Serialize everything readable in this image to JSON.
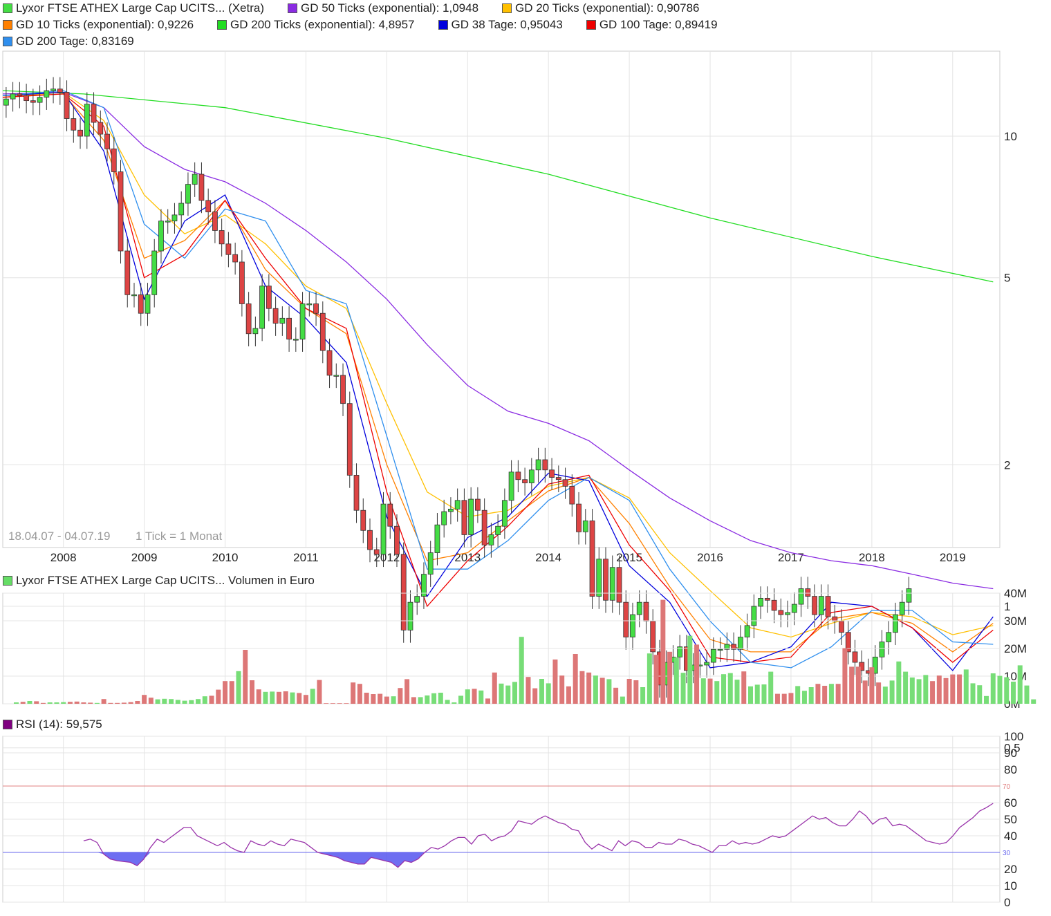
{
  "price_panel": {
    "legend": [
      {
        "label": "Lyxor FTSE ATHEX Large Cap UCITS... (Xetra)",
        "color": "#44dd44"
      },
      {
        "label": "GD 50 Ticks (exponential): 1,0948",
        "color": "#8a2be2"
      },
      {
        "label": "GD 20 Ticks (exponential): 0,90786",
        "color": "#ffc000"
      },
      {
        "label": "GD 10 Ticks (exponential): 0,9226",
        "color": "#ff8000"
      },
      {
        "label": "GD 200 Ticks (exponential): 4,8957",
        "color": "#22dd22"
      },
      {
        "label": "GD 38 Tage: 0,95043",
        "color": "#0000dd"
      },
      {
        "label": "GD 100 Tage: 0,89419",
        "color": "#ee0000"
      },
      {
        "label": "GD 200 Tage: 0,83169",
        "color": "#2f8fee"
      }
    ],
    "date_range": "18.04.07 - 04.07.19",
    "tick_info": "1 Tick = 1 Monat",
    "y_ticks": [
      "10",
      "5",
      "2",
      "1",
      "0,5"
    ],
    "x_ticks": [
      "2008",
      "2009",
      "2010",
      "2011",
      "2012",
      "2013",
      "2014",
      "2015",
      "2016",
      "2017",
      "2018",
      "2019"
    ]
  },
  "volume_panel": {
    "legend": {
      "label": "Lyxor FTSE ATHEX Large Cap UCITS... Volumen in Euro",
      "color": "#66dd66"
    },
    "y_ticks": [
      "40M",
      "30M",
      "20M",
      "10M",
      "0M"
    ]
  },
  "rsi_panel": {
    "legend": {
      "label": "RSI (14): 59,575",
      "color": "#800080"
    },
    "y_ticks": [
      "100",
      "90",
      "80",
      "60",
      "50",
      "40",
      "20",
      "10",
      "0"
    ],
    "upper_line_label": "70",
    "lower_line_label": "30"
  },
  "colors": {
    "up_candle": "#44dd44",
    "down_candle": "#dd4444",
    "vol_up": "#77dd77",
    "vol_down": "#dd7777",
    "rsi_line": "#9933aa",
    "rsi_fill": "#5555ee",
    "line_70": "#e08080",
    "line_30": "#6666ee",
    "grid": "#e4e4e4"
  },
  "chart_data": [
    {
      "type": "candlestick",
      "title": "Lyxor FTSE ATHEX Large Cap UCITS... (Xetra)",
      "yscale": "log",
      "ylim": [
        0.36,
        20
      ],
      "x_start": "2007-04",
      "x_end": "2019-07",
      "close": [
        12.0,
        12.3,
        12.2,
        11.9,
        11.8,
        12.1,
        12.5,
        12.6,
        12.4,
        10.9,
        10.3,
        10.0,
        11.7,
        10.7,
        10.1,
        9.4,
        8.4,
        5.7,
        4.6,
        4.6,
        4.2,
        4.6,
        5.7,
        6.6,
        6.6,
        6.8,
        7.2,
        7.9,
        8.3,
        7.3,
        6.9,
        6.3,
        5.9,
        5.6,
        5.4,
        4.4,
        3.8,
        3.9,
        4.8,
        4.3,
        4.0,
        4.1,
        3.7,
        3.7,
        4.4,
        4.4,
        4.2,
        3.5,
        3.1,
        3.1,
        2.7,
        1.9,
        1.6,
        1.45,
        1.32,
        1.29,
        1.65,
        1.48,
        1.29,
        0.89,
        1.02,
        1.05,
        1.17,
        1.3,
        1.49,
        1.59,
        1.61,
        1.68,
        1.42,
        1.69,
        1.6,
        1.35,
        1.42,
        1.48,
        1.68,
        1.93,
        1.86,
        1.83,
        1.95,
        2.05,
        1.95,
        1.88,
        1.86,
        1.8,
        1.65,
        1.44,
        1.52,
        1.05,
        1.26,
        1.03,
        1.21,
        1.02,
        0.86,
        0.96,
        1.02,
        0.93,
        0.8,
        0.68,
        0.76,
        0.78,
        0.82,
        0.73,
        0.75,
        0.75,
        0.76,
        0.81,
        0.81,
        0.83,
        0.81,
        0.86,
        0.91,
        1.0,
        1.04,
        1.03,
        0.98,
        0.96,
        0.97,
        1.01,
        1.09,
        1.05,
        0.96,
        1.05,
        0.95,
        0.93,
        0.88,
        0.8,
        0.76,
        0.73,
        0.72,
        0.78,
        0.84,
        0.88,
        0.96,
        1.02,
        1.09
      ]
    },
    {
      "type": "line",
      "series": [
        {
          "name": "GD 200 Ticks (exponential): 4,8957",
          "x": [
            "2007-04",
            "2008-04",
            "2010-01",
            "2012-01",
            "2014-01",
            "2016-01",
            "2018-01",
            "2019-07"
          ],
          "values": [
            12.5,
            12.3,
            11.5,
            9.9,
            8.3,
            6.7,
            5.55,
            4.9
          ]
        },
        {
          "name": "GD 50 Ticks (exponential): 1,0948",
          "x": [
            "2007-04",
            "2008-01",
            "2008-07",
            "2009-01",
            "2009-07",
            "2010-01",
            "2010-07",
            "2011-01",
            "2011-07",
            "2012-01",
            "2012-07",
            "2013-01",
            "2013-07",
            "2014-01",
            "2014-07",
            "2015-01",
            "2015-07",
            "2016-01",
            "2016-07",
            "2017-01",
            "2017-07",
            "2018-01",
            "2018-07",
            "2019-01",
            "2019-07"
          ],
          "values": [
            12.3,
            12.4,
            11.5,
            9.5,
            8.5,
            8.0,
            7.2,
            6.3,
            5.4,
            4.5,
            3.6,
            2.95,
            2.6,
            2.45,
            2.25,
            1.95,
            1.7,
            1.52,
            1.38,
            1.3,
            1.25,
            1.22,
            1.17,
            1.12,
            1.09
          ]
        },
        {
          "name": "GD 20 Ticks (exponential): 0,90786",
          "x": [
            "2007-04",
            "2008-01",
            "2008-07",
            "2009-01",
            "2009-07",
            "2010-01",
            "2010-07",
            "2011-01",
            "2011-07",
            "2012-01",
            "2012-07",
            "2013-01",
            "2013-07",
            "2014-01",
            "2014-07",
            "2015-01",
            "2015-07",
            "2016-01",
            "2016-07",
            "2017-01",
            "2017-07",
            "2018-01",
            "2018-07",
            "2019-01",
            "2019-07"
          ],
          "values": [
            12.1,
            12.4,
            10.8,
            7.5,
            6.2,
            6.8,
            5.9,
            4.8,
            4.3,
            2.7,
            1.75,
            1.55,
            1.6,
            1.8,
            1.88,
            1.7,
            1.3,
            1.08,
            0.9,
            0.86,
            0.92,
            0.97,
            0.95,
            0.87,
            0.91
          ]
        },
        {
          "name": "GD 10 Ticks (exponential): 0,9226",
          "x": [
            "2007-04",
            "2008-01",
            "2008-07",
            "2009-01",
            "2009-07",
            "2010-01",
            "2010-07",
            "2011-01",
            "2011-07",
            "2012-01",
            "2012-07",
            "2013-01",
            "2013-07",
            "2014-01",
            "2014-07",
            "2015-01",
            "2015-07",
            "2016-01",
            "2016-07",
            "2017-01",
            "2017-07",
            "2018-01",
            "2018-07",
            "2019-01",
            "2019-07"
          ],
          "values": [
            12.1,
            12.3,
            9.8,
            5.5,
            6.0,
            7.3,
            5.2,
            4.3,
            3.8,
            2.0,
            1.25,
            1.3,
            1.52,
            1.76,
            1.88,
            1.5,
            1.1,
            0.85,
            0.8,
            0.8,
            0.94,
            0.97,
            0.92,
            0.8,
            0.92
          ]
        },
        {
          "name": "GD 38 Tage: 0,95043",
          "x": [
            "2007-04",
            "2008-01",
            "2008-07",
            "2009-01",
            "2009-07",
            "2010-01",
            "2010-07",
            "2011-01",
            "2011-07",
            "2012-01",
            "2012-07",
            "2013-01",
            "2013-07",
            "2014-01",
            "2014-07",
            "2015-01",
            "2015-07",
            "2016-01",
            "2016-07",
            "2017-01",
            "2017-07",
            "2018-01",
            "2018-07",
            "2019-01",
            "2019-07"
          ],
          "values": [
            12.2,
            12.4,
            9.3,
            4.5,
            6.6,
            7.5,
            4.8,
            4.1,
            3.3,
            1.55,
            1.05,
            1.4,
            1.55,
            1.92,
            1.85,
            1.22,
            1.02,
            0.74,
            0.76,
            0.82,
            1.02,
            1.0,
            0.9,
            0.73,
            0.95
          ]
        },
        {
          "name": "GD 100 Tage: 0,89419",
          "x": [
            "2007-04",
            "2008-01",
            "2008-07",
            "2009-01",
            "2009-07",
            "2010-01",
            "2010-07",
            "2011-01",
            "2011-07",
            "2012-01",
            "2012-07",
            "2013-01",
            "2013-07",
            "2014-01",
            "2014-07",
            "2015-01",
            "2015-07",
            "2016-01",
            "2016-07",
            "2017-01",
            "2017-07",
            "2018-01",
            "2018-07",
            "2019-01",
            "2019-07"
          ],
          "values": [
            12.1,
            12.3,
            10.5,
            5.0,
            5.6,
            7.3,
            5.5,
            4.3,
            3.9,
            1.75,
            1.0,
            1.25,
            1.48,
            1.82,
            1.9,
            1.35,
            1.08,
            0.78,
            0.76,
            0.78,
            0.97,
            1.0,
            0.9,
            0.76,
            0.89
          ]
        },
        {
          "name": "GD 200 Tage: 0,83169",
          "x": [
            "2007-04",
            "2008-01",
            "2008-07",
            "2009-01",
            "2009-07",
            "2010-01",
            "2010-07",
            "2011-01",
            "2011-07",
            "2012-01",
            "2012-07",
            "2013-01",
            "2013-07",
            "2014-01",
            "2014-07",
            "2015-01",
            "2015-07",
            "2016-01",
            "2016-07",
            "2017-01",
            "2017-07",
            "2018-01",
            "2018-07",
            "2019-01",
            "2019-07"
          ],
          "values": [
            12.2,
            12.5,
            11.5,
            6.5,
            5.5,
            7.0,
            6.6,
            4.7,
            4.4,
            2.3,
            1.2,
            1.2,
            1.38,
            1.68,
            1.88,
            1.68,
            1.2,
            0.93,
            0.76,
            0.74,
            0.82,
            0.98,
            0.98,
            0.84,
            0.83
          ]
        }
      ]
    },
    {
      "type": "bar",
      "title": "Lyxor FTSE ATHEX Large Cap UCITS... Volumen in Euro",
      "ylim": [
        0,
        40
      ],
      "unit": "M",
      "values": [
        0.5,
        0.7,
        1.0,
        0.9,
        0.3,
        0.5,
        0.5,
        0.6,
        0.7,
        0.8,
        0.5,
        0.4,
        0.3,
        1.7,
        0.3,
        0.3,
        0.4,
        0.6,
        1.0,
        3.2,
        2.2,
        1.6,
        1.8,
        1.7,
        1.4,
        1.1,
        1.3,
        1.7,
        2.7,
        2.9,
        5.1,
        8.2,
        8.2,
        11.8,
        19.5,
        8.5,
        5.2,
        4.3,
        4.4,
        4.3,
        4.5,
        4.1,
        3.9,
        3.2,
        5.4,
        8.6,
        0.2,
        0.2,
        0.2,
        0.2,
        7.7,
        7.2,
        4.0,
        3.5,
        3.6,
        2.6,
        2.7,
        5.7,
        8.9,
        2.4,
        2.4,
        3.0,
        3.8,
        4.0,
        1.4,
        0.5,
        2.9,
        5.2,
        5.4,
        4.8,
        1.9,
        11.3,
        7.3,
        6.6,
        7.9,
        24.2,
        9.7,
        5.6,
        9.0,
        7.4,
        16.0,
        10.2,
        6.3,
        18.0,
        11.8,
        11.3,
        10.2,
        9.4,
        8.9,
        5.8,
        2.6,
        9.0,
        8.5,
        6.0,
        18.2,
        17.7,
        37.6,
        18.8,
        16.8,
        11.2,
        24.6,
        21.4,
        9.2,
        9.1,
        8.2,
        10.7,
        11.1,
        8.7,
        11.7,
        6.3,
        6.9,
        7.0,
        11.6,
        3.6,
        3.6,
        3.9,
        6.4,
        4.7,
        6.0,
        7.2,
        6.5,
        7.2,
        7.2,
        20.1,
        13.4,
        13.4,
        8.4,
        13.2,
        7.7,
        6.2,
        8.4,
        15.3,
        11.6,
        9.5,
        8.9,
        10.4,
        8.2,
        10.2,
        9.3,
        10.6,
        10.6,
        12.4,
        7.4,
        6.7,
        2.8,
        11.0,
        10.1,
        9.6,
        8.0,
        13.9,
        6.6,
        1.6
      ],
      "up": [
        1,
        0,
        1,
        0,
        0,
        1,
        1,
        1,
        0,
        0,
        0,
        0,
        1,
        0,
        0,
        0,
        0,
        0,
        0,
        0,
        0,
        1,
        1,
        1,
        1,
        1,
        1,
        1,
        1,
        0,
        0,
        0,
        0,
        1,
        0,
        0,
        0,
        1,
        1,
        0,
        0,
        1,
        0,
        0,
        1,
        0,
        0,
        0,
        0,
        0,
        0,
        0,
        0,
        0,
        0,
        0,
        1,
        0,
        0,
        0,
        1,
        1,
        1,
        1,
        1,
        1,
        1,
        1,
        0,
        1,
        0,
        0,
        1,
        1,
        1,
        1,
        0,
        0,
        1,
        1,
        0,
        0,
        0,
        0,
        0,
        0,
        1,
        0,
        1,
        0,
        1,
        0,
        0,
        1,
        1,
        0,
        0,
        0,
        1,
        1,
        1,
        0,
        1,
        0,
        1,
        1,
        1,
        1,
        0,
        1,
        1,
        1,
        1,
        0,
        0,
        0,
        1,
        1,
        1,
        0,
        0,
        1,
        0,
        0,
        0,
        0,
        0,
        0,
        0,
        1,
        1,
        1,
        1,
        1,
        1,
        1,
        0,
        0,
        0,
        0,
        0,
        1,
        1,
        1,
        1,
        1,
        1,
        1,
        1,
        1,
        1,
        1
      ]
    },
    {
      "type": "line",
      "title": "RSI (14): 59,575",
      "ylim": [
        0,
        100
      ],
      "x_start": "2008-04",
      "x_end": "2019-07",
      "values": [
        37,
        38,
        36,
        29,
        26,
        25,
        24.5,
        24,
        22,
        26,
        33,
        38,
        36,
        39,
        42,
        45,
        45,
        40,
        38,
        36,
        34,
        36,
        33,
        31,
        30,
        37,
        35,
        34,
        37,
        35,
        34,
        38,
        37,
        36,
        33,
        30,
        29,
        28,
        27,
        25,
        24,
        23,
        23,
        27,
        26,
        25,
        24,
        21,
        25,
        24,
        26,
        30,
        33,
        32,
        34,
        37,
        39,
        39,
        35,
        40,
        41,
        37,
        39,
        40,
        43,
        49,
        48,
        47,
        50,
        52,
        50,
        48,
        47,
        44,
        43,
        36,
        32,
        35,
        33,
        31,
        37,
        34,
        37,
        36,
        33,
        33,
        36,
        35,
        35,
        38,
        37,
        35,
        34,
        32,
        30,
        34,
        34,
        37,
        35,
        36,
        35,
        36,
        38,
        40,
        39,
        40,
        43,
        46,
        49,
        52,
        50,
        51,
        48,
        46,
        46,
        50,
        55,
        52,
        47,
        50,
        51,
        46,
        47,
        46,
        43,
        40,
        37,
        36,
        35,
        36,
        40,
        45,
        48,
        51,
        55,
        57,
        59.6
      ]
    }
  ]
}
